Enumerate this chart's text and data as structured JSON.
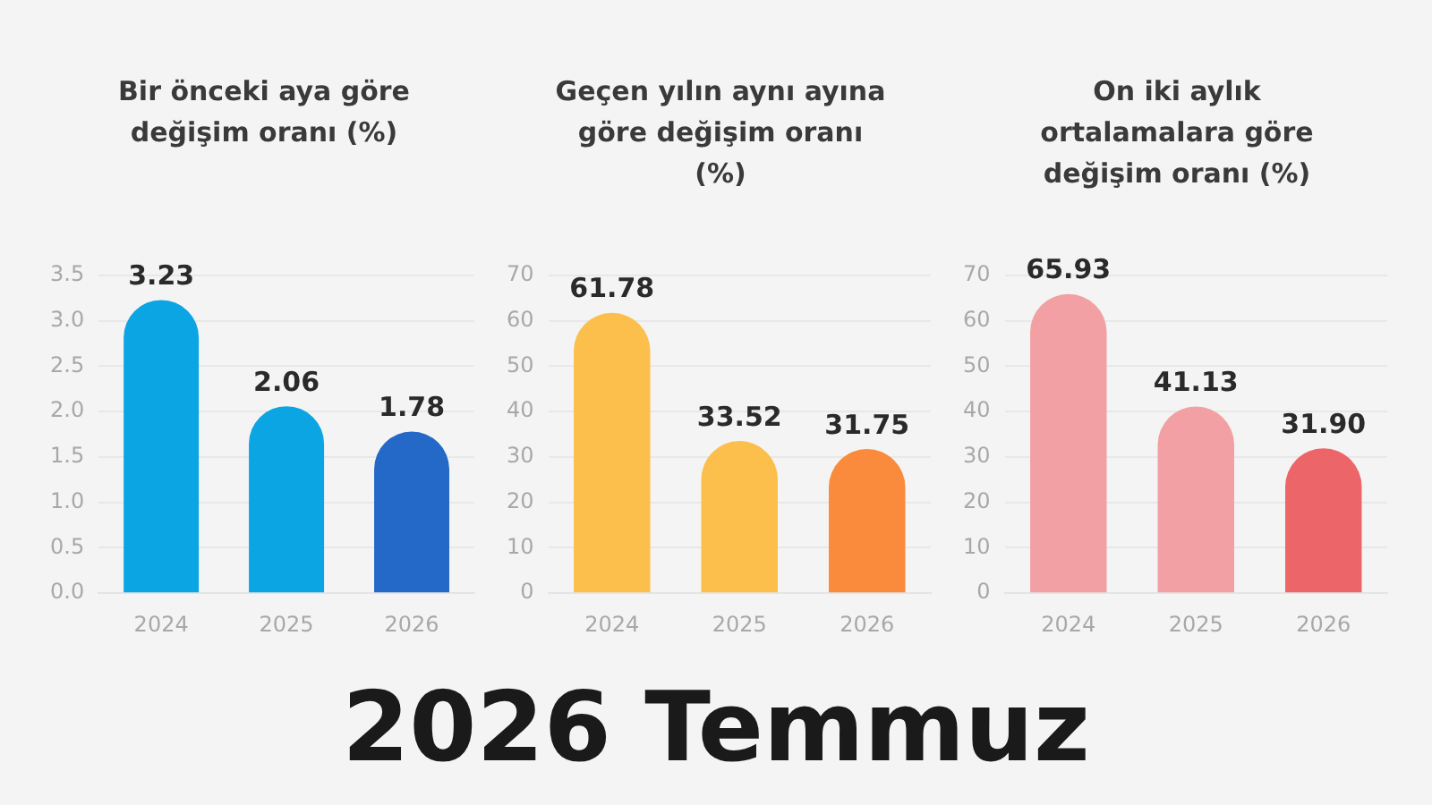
{
  "chart_data": [
    {
      "type": "bar",
      "title": "Bir önceki aya göre değişim oranı (%)",
      "categories": [
        "2024",
        "2025",
        "2026"
      ],
      "values": [
        3.23,
        2.06,
        1.78
      ],
      "colors": [
        "#0ba5e4",
        "#0ba5e4",
        "#2468c8"
      ],
      "ylim": [
        0,
        3.5
      ],
      "yticks": [
        {
          "value": 0,
          "label": "0.0"
        },
        0.5,
        {
          "value": 1,
          "label": "1.0"
        },
        1.5,
        {
          "value": 2,
          "label": "2.0"
        },
        2.5,
        {
          "value": 3,
          "label": "3.0"
        },
        3.5
      ],
      "grid": "y",
      "data_labels": true
    },
    {
      "type": "bar",
      "title": "Geçen yılın aynı ayına göre değişim oranı (%)",
      "categories": [
        "2024",
        "2025",
        "2026"
      ],
      "values": [
        61.78,
        33.52,
        31.75
      ],
      "colors": [
        "#fdbf4c",
        "#fdbf4c",
        "#fb8b3c"
      ],
      "ylim": [
        0,
        70
      ],
      "yticks": [
        0,
        10,
        20,
        30,
        40,
        50,
        60,
        70
      ],
      "grid": "y",
      "data_labels": true
    },
    {
      "type": "bar",
      "title": "On iki aylık ortalamalara göre değişim oranı (%)",
      "categories": [
        "2024",
        "2025",
        "2026"
      ],
      "values": [
        65.93,
        41.13,
        31.9
      ],
      "colors": [
        "#f2a0a4",
        "#f2a0a4",
        "#ec6669"
      ],
      "ylim": [
        0,
        70
      ],
      "yticks": [
        0,
        10,
        20,
        30,
        40,
        50,
        60,
        70
      ],
      "grid": "y",
      "data_labels": true,
      "value_labels": [
        "65.93",
        "41.13",
        "31.90"
      ]
    },
    {
      "type": "other",
      "title": "2026 Temmuz"
    }
  ]
}
